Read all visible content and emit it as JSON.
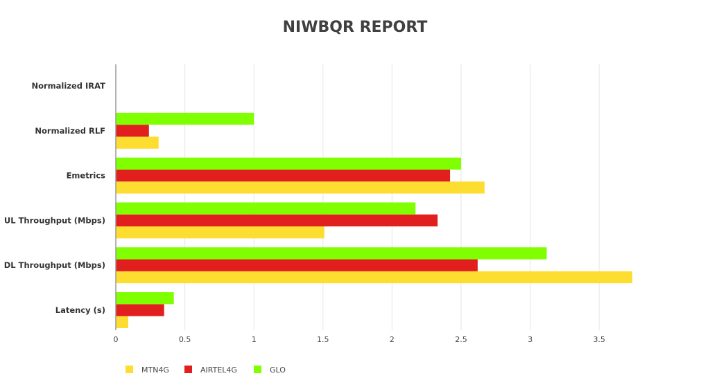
{
  "chart_data": {
    "type": "bar",
    "orientation": "horizontal",
    "title": "NIWBQR REPORT",
    "xlabel": "",
    "ylabel": "",
    "categories": [
      "Latency (s)",
      "DL Throughput (Mbps)",
      "UL Throughput (Mbps)",
      "Emetrics",
      "Normalized RLF",
      "Normalized IRAT"
    ],
    "series": [
      {
        "name": "MTN4G",
        "color": "#fddd2f",
        "values": [
          0.09,
          3.74,
          1.51,
          2.67,
          0.31,
          0
        ]
      },
      {
        "name": "AIRTEL4G",
        "color": "#e21f1f",
        "values": [
          0.35,
          2.62,
          2.33,
          2.42,
          0.24,
          0
        ]
      },
      {
        "name": "GLO",
        "color": "#7fff00",
        "values": [
          0.42,
          3.12,
          2.17,
          2.5,
          1.0,
          0
        ]
      }
    ],
    "xlim": [
      0,
      4
    ],
    "x_ticks": [
      0,
      0.5,
      1,
      1.5,
      2,
      2.5,
      3,
      3.5
    ],
    "x_tick_labels": [
      "0",
      "0.5",
      "1",
      "1.5",
      "2",
      "2.5",
      "3",
      "3.5"
    ],
    "grid": true,
    "legend_position": "bottom-left"
  }
}
